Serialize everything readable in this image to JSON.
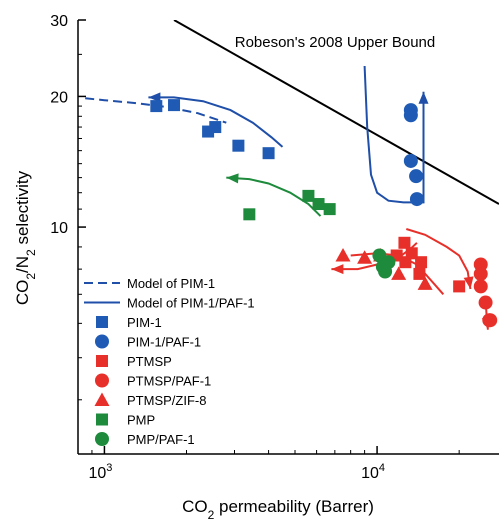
{
  "chart_data": {
    "type": "scatter",
    "title": "",
    "xlabel": "CO2 permeability (Barrer)",
    "ylabel": "CO2/N2 selectivity",
    "xscale": "log",
    "yscale": "log",
    "xlim": [
      800,
      28000
    ],
    "ylim": [
      3,
      30
    ],
    "x_ticks": [
      {
        "value": 1000,
        "base": "10",
        "exp": "3"
      },
      {
        "value": 10000,
        "base": "10",
        "exp": "4"
      }
    ],
    "y_ticks": [
      {
        "value": 10,
        "label": "10"
      },
      {
        "value": 20,
        "label": "20"
      },
      {
        "value": 30,
        "label": "30"
      }
    ],
    "upper_bound": {
      "label": "Robeson's 2008 Upper Bound",
      "points": [
        [
          1800,
          30
        ],
        [
          28000,
          11.3
        ]
      ],
      "color": "#000000"
    },
    "legend_position": "bottom-left",
    "legend": [
      {
        "label": "Model of PIM-1",
        "kind": "dashed-line",
        "color": "#1f4fa8"
      },
      {
        "label": "Model of PIM-1/PAF-1",
        "kind": "line",
        "color": "#1f4fa8"
      },
      {
        "label": "PIM-1",
        "kind": "square",
        "color": "#1f5bb5"
      },
      {
        "label": "PIM-1/PAF-1",
        "kind": "circle",
        "color": "#1f5bb5"
      },
      {
        "label": "PTMSP",
        "kind": "square",
        "color": "#e8302a"
      },
      {
        "label": "PTMSP/PAF-1",
        "kind": "circle",
        "color": "#e8302a"
      },
      {
        "label": "PTMSP/ZIF-8",
        "kind": "triangle",
        "color": "#e8302a"
      },
      {
        "label": "PMP",
        "kind": "square",
        "color": "#1e8a3c"
      },
      {
        "label": "PMP/PAF-1",
        "kind": "circle",
        "color": "#1e8a3c"
      }
    ],
    "series": [
      {
        "name": "PIM-1",
        "marker": "square",
        "color": "#1f5bb5",
        "points": [
          [
            1550,
            19
          ],
          [
            1800,
            19.1
          ],
          [
            2400,
            16.6
          ],
          [
            2550,
            17
          ],
          [
            3100,
            15.4
          ],
          [
            4000,
            14.8
          ]
        ]
      },
      {
        "name": "PIM-1/PAF-1",
        "marker": "circle",
        "color": "#1f5bb5",
        "points": [
          [
            13300,
            18.6
          ],
          [
            13300,
            18.1
          ],
          [
            13300,
            14.2
          ],
          [
            13900,
            13.1
          ],
          [
            14000,
            11.6
          ]
        ]
      },
      {
        "name": "PTMSP",
        "marker": "square",
        "color": "#e8302a",
        "points": [
          [
            11800,
            8.6
          ],
          [
            12600,
            9.2
          ],
          [
            12700,
            8.3
          ],
          [
            13400,
            8.7
          ],
          [
            14300,
            7.8
          ],
          [
            14500,
            8.3
          ],
          [
            20000,
            7.3
          ]
        ]
      },
      {
        "name": "PTMSP/PAF-1",
        "marker": "circle",
        "color": "#e8302a",
        "points": [
          [
            24000,
            8.2
          ],
          [
            24000,
            7.8
          ],
          [
            24000,
            7.3
          ],
          [
            25000,
            6.7
          ],
          [
            25800,
            6.1
          ],
          [
            26000,
            6.1
          ]
        ]
      },
      {
        "name": "PTMSP/ZIF-8",
        "marker": "triangle",
        "color": "#e8302a",
        "points": [
          [
            7500,
            8.6
          ],
          [
            9000,
            8.5
          ],
          [
            10300,
            8.6
          ],
          [
            12000,
            7.8
          ],
          [
            15000,
            7.4
          ]
        ]
      },
      {
        "name": "PMP",
        "marker": "square",
        "color": "#1e8a3c",
        "points": [
          [
            3400,
            10.7
          ],
          [
            5600,
            11.8
          ],
          [
            6100,
            11.3
          ],
          [
            6700,
            11
          ]
        ]
      },
      {
        "name": "PMP/PAF-1",
        "marker": "circle",
        "color": "#1e8a3c",
        "points": [
          [
            10200,
            8.6
          ],
          [
            10500,
            8.1
          ],
          [
            10700,
            7.9
          ],
          [
            11000,
            8.3
          ]
        ]
      }
    ],
    "curves": [
      {
        "name": "Model of PIM-1",
        "style": "dashed",
        "color": "#1f4fa8",
        "points": [
          [
            850,
            19.8
          ],
          [
            1000,
            19.6
          ],
          [
            1300,
            19.3
          ],
          [
            1700,
            18.9
          ],
          [
            2200,
            18.3
          ],
          [
            2800,
            17.4
          ]
        ]
      },
      {
        "name": "Model of PIM-1/PAF-1",
        "style": "solid",
        "color": "#1f4fa8",
        "points": [
          [
            1450,
            19.9
          ],
          [
            1800,
            19.9
          ],
          [
            2300,
            19.5
          ],
          [
            2900,
            18.6
          ],
          [
            3500,
            17.4
          ],
          [
            4100,
            16.1
          ],
          [
            4500,
            15.3
          ]
        ],
        "arrow": "start"
      },
      {
        "name": "Model of PIM-1/PAF-1",
        "style": "solid",
        "color": "#1f4fa8",
        "points": [
          [
            9000,
            23.5
          ],
          [
            9200,
            17
          ],
          [
            9500,
            13.2
          ],
          [
            10000,
            12
          ],
          [
            11000,
            11.5
          ],
          [
            12500,
            11.4
          ],
          [
            14800,
            11.4
          ],
          [
            14800,
            16
          ],
          [
            14800,
            20.5
          ]
        ],
        "arrow": "end"
      },
      {
        "name": "",
        "style": "solid",
        "color": "#1e8a3c",
        "points": [
          [
            6200,
            10.6
          ],
          [
            5600,
            11.3
          ],
          [
            4800,
            12
          ],
          [
            4000,
            12.6
          ],
          [
            3400,
            12.9
          ],
          [
            2800,
            13
          ]
        ],
        "arrow": "end"
      },
      {
        "name": "",
        "style": "solid",
        "color": "#e8302a",
        "points": [
          [
            14000,
            9.2
          ],
          [
            13500,
            9
          ],
          [
            12000,
            8.5
          ],
          [
            10000,
            8.2
          ],
          [
            8500,
            8
          ],
          [
            7500,
            8
          ],
          [
            6800,
            8
          ]
        ],
        "arrow": "end"
      },
      {
        "name": "",
        "style": "solid",
        "color": "#e8302a",
        "points": [
          [
            8000,
            8.6
          ],
          [
            10000,
            8.7
          ],
          [
            12000,
            8.6
          ],
          [
            14000,
            8.2
          ],
          [
            16500,
            7.3
          ],
          [
            17500,
            7
          ]
        ]
      },
      {
        "name": "",
        "style": "solid",
        "color": "#e8302a",
        "points": [
          [
            12800,
            9.9
          ],
          [
            15000,
            9.6
          ],
          [
            18000,
            9
          ],
          [
            20000,
            8.6
          ],
          [
            21500,
            7.9
          ],
          [
            22000,
            7.2
          ]
        ],
        "arrow": "end"
      },
      {
        "name": "",
        "style": "solid",
        "color": "#e8302a",
        "points": [
          [
            25000,
            6.8
          ],
          [
            25200,
            6.3
          ],
          [
            25500,
            5.8
          ]
        ],
        "arrow": "end"
      }
    ]
  }
}
